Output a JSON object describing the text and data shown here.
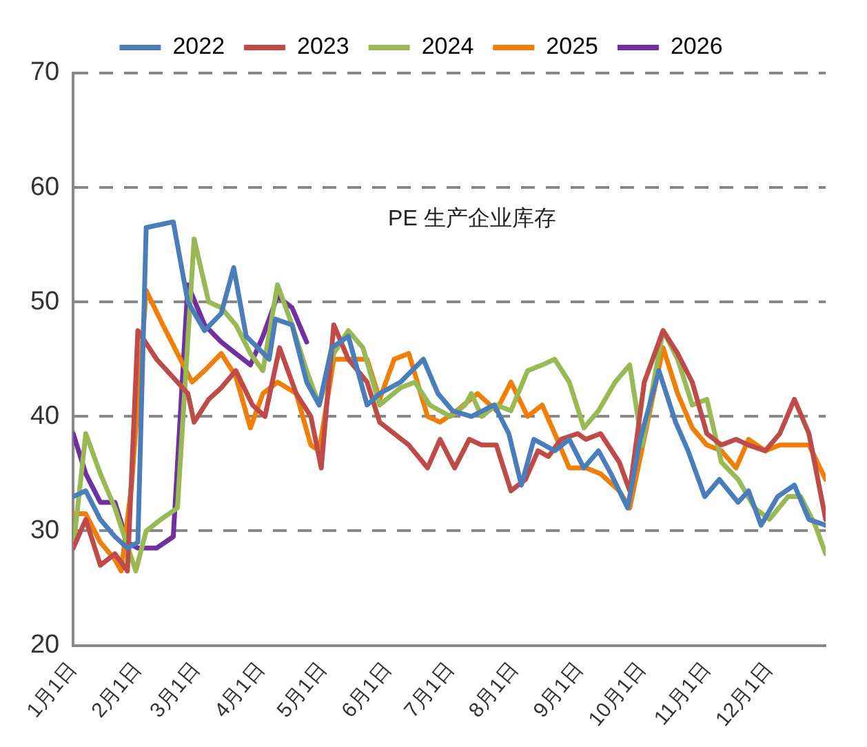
{
  "chart_data": {
    "type": "line",
    "title": "PE 生产企业库存",
    "xlim": [
      "--01-01",
      "--12-28"
    ],
    "xticks": [
      {
        "value": "--01-01",
        "label": "1月1日"
      },
      {
        "value": "--02-01",
        "label": "2月1日"
      },
      {
        "value": "--03-01",
        "label": "3月1日"
      },
      {
        "value": "--04-01",
        "label": "4月1日"
      },
      {
        "value": "--05-01",
        "label": "5月1日"
      },
      {
        "value": "--06-01",
        "label": "6月1日"
      },
      {
        "value": "--07-01",
        "label": "7月1日"
      },
      {
        "value": "--08-01",
        "label": "8月1日"
      },
      {
        "value": "--09-01",
        "label": "9月1日"
      },
      {
        "value": "--10-01",
        "label": "10月1日"
      },
      {
        "value": "--11-01",
        "label": "11月1日"
      },
      {
        "value": "--12-01",
        "label": "12月1日"
      }
    ],
    "ylim": [
      20,
      70
    ],
    "yticks": [
      20,
      30,
      40,
      50,
      60,
      70
    ],
    "grid": "y",
    "legend": "top",
    "marker": "none",
    "line_style": "solid",
    "series": [
      {
        "name": "2022",
        "color": "#4a7ebb",
        "x": [
          "--01-01",
          "--01-07",
          "--01-14",
          "--01-21",
          "--01-27",
          "--02-01",
          "--02-05",
          "--02-18",
          "--02-25",
          "--03-05",
          "--03-13",
          "--03-19",
          "--03-25",
          "--04-05",
          "--04-08",
          "--04-16",
          "--04-23",
          "--04-29",
          "--05-05",
          "--05-13",
          "--05-22",
          "--05-28",
          "--06-07",
          "--06-18",
          "--06-25",
          "--07-02",
          "--07-11",
          "--07-22",
          "--07-29",
          "--08-04",
          "--08-10",
          "--08-20",
          "--08-27",
          "--09-03",
          "--09-10",
          "--09-16",
          "--09-24",
          "--09-30",
          "--10-09",
          "--10-17",
          "--10-23",
          "--10-31",
          "--11-07",
          "--11-16",
          "--11-21",
          "--11-27",
          "--12-05",
          "--12-13",
          "--12-20",
          "--12-28"
        ],
        "values": [
          33,
          33.5,
          31,
          29.5,
          28.5,
          29,
          56.5,
          57,
          50,
          47.5,
          49,
          53,
          47,
          45,
          48.5,
          48,
          43,
          41,
          46,
          47,
          41,
          42,
          43,
          45,
          42,
          40.5,
          40,
          41,
          38.5,
          34,
          38,
          37,
          38,
          35.5,
          37,
          35,
          32,
          38,
          44,
          39.5,
          37,
          33,
          34.5,
          32.5,
          33.5,
          30.5,
          33,
          34,
          31,
          30.5
        ]
      },
      {
        "name": "2023",
        "color": "#be4b48",
        "x": [
          "--01-01",
          "--01-07",
          "--01-14",
          "--01-21",
          "--01-27",
          "--02-01",
          "--02-10",
          "--02-20",
          "--02-25",
          "--02-28",
          "--03-07",
          "--03-13",
          "--03-20",
          "--03-28",
          "--04-03",
          "--04-10",
          "--04-18",
          "--04-25",
          "--04-30",
          "--05-06",
          "--05-13",
          "--05-22",
          "--05-28",
          "--06-04",
          "--06-11",
          "--06-20",
          "--06-26",
          "--07-03",
          "--07-10",
          "--07-16",
          "--07-23",
          "--07-30",
          "--08-06",
          "--08-12",
          "--08-17",
          "--08-23",
          "--08-31",
          "--09-04",
          "--09-11",
          "--09-20",
          "--09-25",
          "--10-02",
          "--10-11",
          "--10-18",
          "--10-25",
          "--11-01",
          "--11-08",
          "--11-15",
          "--11-21",
          "--11-29",
          "--12-06",
          "--12-13",
          "--12-20",
          "--12-28"
        ],
        "values": [
          28.5,
          31,
          27,
          28,
          26.5,
          47.5,
          45,
          43,
          42,
          39.5,
          41.5,
          42.5,
          44,
          41,
          40,
          46,
          42,
          40,
          35.5,
          48,
          45,
          43,
          39.5,
          38.5,
          37.5,
          35.5,
          38,
          35.5,
          38,
          37.5,
          37.5,
          33.5,
          34.5,
          37,
          36.5,
          38,
          38.5,
          38,
          38.5,
          36,
          33.5,
          43,
          47.5,
          45.5,
          43,
          38.5,
          37.5,
          38,
          37.5,
          37,
          38.5,
          41.5,
          38.5,
          31
        ]
      },
      {
        "name": "2024",
        "color": "#98b954",
        "x": [
          "--01-01",
          "--01-07",
          "--01-14",
          "--01-21",
          "--01-31",
          "--02-05",
          "--02-12",
          "--02-20",
          "--02-28",
          "--03-07",
          "--03-13",
          "--03-20",
          "--03-27",
          "--04-02",
          "--04-09",
          "--04-16",
          "--04-23",
          "--04-29",
          "--05-06",
          "--05-13",
          "--05-20",
          "--05-28",
          "--06-07",
          "--06-14",
          "--06-21",
          "--07-01",
          "--07-08",
          "--07-11",
          "--07-16",
          "--07-23",
          "--07-30",
          "--08-07",
          "--08-14",
          "--08-20",
          "--08-27",
          "--09-03",
          "--09-10",
          "--09-18",
          "--09-25",
          "--10-01",
          "--10-11",
          "--10-18",
          "--10-25",
          "--11-01",
          "--11-08",
          "--11-16",
          "--11-24",
          "--12-01",
          "--12-10",
          "--12-16",
          "--12-23",
          "--12-28"
        ],
        "values": [
          28.5,
          38.5,
          35,
          32,
          26.5,
          30,
          31,
          32,
          55.5,
          50,
          49.5,
          48,
          45.5,
          44,
          51.5,
          48,
          44,
          41,
          45.5,
          47.5,
          46,
          41,
          42.5,
          43,
          41,
          40,
          41,
          42,
          40,
          41,
          40.5,
          44,
          44.5,
          45,
          43,
          39,
          40.5,
          43,
          44.5,
          37.5,
          47.5,
          45,
          41,
          41.5,
          36,
          34.5,
          32,
          31,
          33,
          33,
          30.5,
          28
        ]
      },
      {
        "name": "2025",
        "color": "#f07f09",
        "x": [
          "--01-01",
          "--01-07",
          "--01-14",
          "--01-21",
          "--01-24",
          "--01-29",
          "--02-05",
          "--02-13",
          "--02-20",
          "--02-27",
          "--03-05",
          "--03-13",
          "--03-20",
          "--03-27",
          "--04-02",
          "--04-09",
          "--04-18",
          "--04-25",
          "--04-29",
          "--05-06",
          "--05-15",
          "--05-22",
          "--05-28",
          "--06-04",
          "--06-11",
          "--06-20",
          "--06-26",
          "--07-04",
          "--07-14",
          "--07-23",
          "--07-30",
          "--08-07",
          "--08-14",
          "--08-20",
          "--08-27",
          "--09-04",
          "--09-11",
          "--09-20",
          "--09-25",
          "--10-11",
          "--10-18",
          "--10-25",
          "--11-01",
          "--11-08",
          "--11-15",
          "--11-21",
          "--11-29",
          "--12-06",
          "--12-20",
          "--12-28"
        ],
        "values": [
          31.5,
          31.5,
          29,
          27.5,
          26.5,
          34,
          51,
          48,
          45.5,
          43,
          44,
          45.5,
          43.5,
          39,
          42,
          43,
          42,
          37.5,
          37,
          45,
          45,
          45,
          41.5,
          45,
          45.5,
          40,
          39.5,
          40.5,
          42,
          40.5,
          43,
          40,
          41,
          38.5,
          35.5,
          35.5,
          35,
          33.5,
          32,
          46,
          42,
          39,
          37.5,
          37,
          35.5,
          38,
          37,
          37.5,
          37.5,
          34.5
        ]
      },
      {
        "name": "2026",
        "color": "#7030a0",
        "x": [
          "--01-01",
          "--01-07",
          "--01-14",
          "--01-21",
          "--01-27",
          "--02-01",
          "--02-10",
          "--02-18",
          "--02-25",
          "--03-05",
          "--03-13",
          "--03-20",
          "--03-27",
          "--04-02",
          "--04-09",
          "--04-16",
          "--04-23"
        ],
        "values": [
          38.5,
          35,
          32.5,
          32.5,
          29,
          28.5,
          28.5,
          29.5,
          51.5,
          48,
          46.5,
          45.5,
          44.5,
          47,
          50.5,
          49.5,
          46.5
        ]
      }
    ]
  }
}
